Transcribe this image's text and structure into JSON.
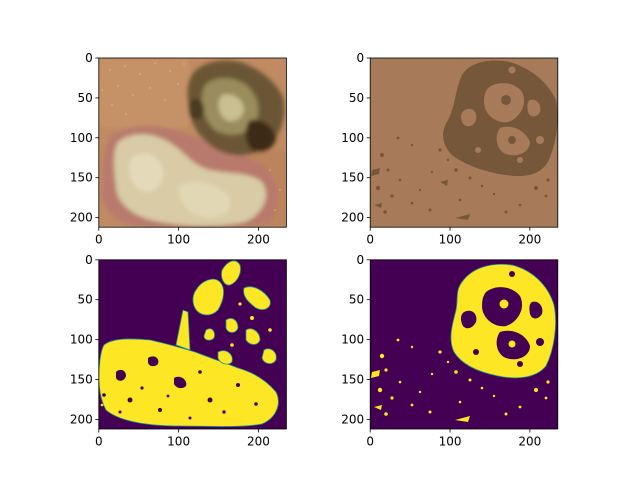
{
  "figure": {
    "background": "#ffffff"
  },
  "chart_data": [
    {
      "type": "heatmap",
      "panel": "top-left",
      "image_kind": "rgb-photo",
      "description_colors": {
        "skin": "#c08a62",
        "lesion_dark": "#5a4a30",
        "lesion_light": "#d6c9a4",
        "lesion_red": "#b07268"
      },
      "xlim": [
        0,
        235
      ],
      "ylim": [
        212,
        0
      ],
      "xticks": [
        0,
        100,
        200
      ],
      "yticks": [
        0,
        50,
        100,
        150,
        200
      ],
      "xtick_labels": [
        "0",
        "100",
        "200"
      ],
      "ytick_labels": [
        "0",
        "50",
        "100",
        "150",
        "200"
      ]
    },
    {
      "type": "heatmap",
      "panel": "top-right",
      "image_kind": "two-color segmentation",
      "palette": {
        "background": "#a77b59",
        "foreground": "#76573a"
      },
      "xlim": [
        0,
        235
      ],
      "ylim": [
        212,
        0
      ],
      "xticks": [
        0,
        100,
        200
      ],
      "yticks": [
        0,
        50,
        100,
        150,
        200
      ],
      "xtick_labels": [
        "0",
        "100",
        "200"
      ],
      "ytick_labels": [
        "0",
        "50",
        "100",
        "150",
        "200"
      ]
    },
    {
      "type": "heatmap",
      "panel": "bottom-left",
      "image_kind": "binary mask (viridis)",
      "palette": {
        "low": "#440154",
        "high": "#fde725",
        "edge": "#21918c"
      },
      "xlim": [
        0,
        235
      ],
      "ylim": [
        212,
        0
      ],
      "xticks": [
        0,
        100,
        200
      ],
      "yticks": [
        0,
        50,
        100,
        150,
        200
      ],
      "xtick_labels": [
        "0",
        "100",
        "200"
      ],
      "ytick_labels": [
        "0",
        "50",
        "100",
        "150",
        "200"
      ]
    },
    {
      "type": "heatmap",
      "panel": "bottom-right",
      "image_kind": "binary mask (viridis)",
      "palette": {
        "low": "#440154",
        "high": "#fde725",
        "edge": "#21918c"
      },
      "xlim": [
        0,
        235
      ],
      "ylim": [
        212,
        0
      ],
      "xticks": [
        0,
        100,
        200
      ],
      "yticks": [
        0,
        50,
        100,
        150,
        200
      ],
      "xtick_labels": [
        "0",
        "100",
        "200"
      ],
      "ytick_labels": [
        "0",
        "50",
        "100",
        "150",
        "200"
      ]
    }
  ]
}
